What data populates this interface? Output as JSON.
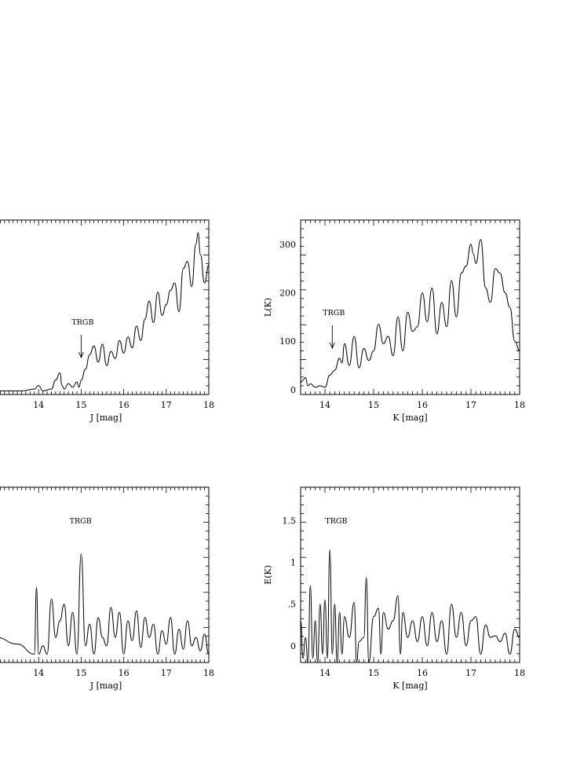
{
  "figure": {
    "charts": [
      {
        "id": "lf-j",
        "type": "line",
        "xlabel": "J [mag]",
        "ylabel": "",
        "xlim": [
          13.0,
          18.0
        ],
        "ylim": [
          0,
          1
        ],
        "x_ticks": [
          "14",
          "15",
          "16",
          "17",
          "18"
        ],
        "y_ticks": [],
        "annotation": {
          "text": "TRGB",
          "x": 15.0,
          "arrow": true
        },
        "series": [
          {
            "x": [
              13.0,
              13.6,
              13.9,
              14.0,
              14.1,
              14.3,
              14.4,
              14.5,
              14.55,
              14.6,
              14.7,
              14.8,
              14.9,
              14.95,
              15.0,
              15.1,
              15.2,
              15.3,
              15.4,
              15.5,
              15.6,
              15.7,
              15.8,
              15.9,
              16.0,
              16.1,
              16.2,
              16.3,
              16.4,
              16.5,
              16.6,
              16.7,
              16.8,
              16.9,
              17.0,
              17.1,
              17.2,
              17.3,
              17.4,
              17.5,
              17.6,
              17.7,
              17.75,
              17.8,
              17.9,
              18.0
            ],
            "y": [
              0.0,
              0.0,
              0.01,
              0.03,
              0.0,
              0.01,
              0.06,
              0.1,
              0.03,
              0.01,
              0.04,
              0.02,
              0.05,
              0.02,
              0.06,
              0.12,
              0.2,
              0.25,
              0.16,
              0.26,
              0.14,
              0.22,
              0.18,
              0.28,
              0.21,
              0.3,
              0.24,
              0.36,
              0.28,
              0.4,
              0.5,
              0.38,
              0.55,
              0.42,
              0.48,
              0.56,
              0.6,
              0.44,
              0.68,
              0.72,
              0.58,
              0.82,
              0.88,
              0.76,
              0.6,
              0.7
            ]
          }
        ]
      },
      {
        "id": "lf-k",
        "type": "line",
        "xlabel": "K [mag]",
        "ylabel": "L(K)",
        "xlim": [
          13.5,
          18.0
        ],
        "ylim": [
          -10,
          350
        ],
        "x_ticks": [
          "14",
          "15",
          "16",
          "17",
          "18"
        ],
        "y_ticks": [
          "0",
          "100",
          "200",
          "300"
        ],
        "annotation": {
          "text": "TRGB",
          "x": 14.15,
          "arrow": true
        },
        "series": [
          {
            "x": [
              13.5,
              13.55,
              13.6,
              13.65,
              13.7,
              13.8,
              13.9,
              14.0,
              14.1,
              14.2,
              14.3,
              14.35,
              14.4,
              14.5,
              14.6,
              14.7,
              14.8,
              14.9,
              15.0,
              15.1,
              15.2,
              15.3,
              15.4,
              15.5,
              15.6,
              15.7,
              15.8,
              15.9,
              16.0,
              16.1,
              16.2,
              16.3,
              16.4,
              16.5,
              16.6,
              16.7,
              16.8,
              16.9,
              17.0,
              17.05,
              17.1,
              17.2,
              17.3,
              17.4,
              17.5,
              17.6,
              17.7,
              17.8,
              17.9,
              18.0
            ],
            "y": [
              15,
              20,
              25,
              8,
              12,
              5,
              8,
              5,
              30,
              40,
              65,
              55,
              95,
              50,
              110,
              45,
              85,
              60,
              80,
              135,
              95,
              110,
              70,
              150,
              80,
              160,
              120,
              130,
              200,
              140,
              210,
              115,
              180,
              130,
              225,
              150,
              240,
              255,
              300,
              280,
              260,
              310,
              210,
              180,
              250,
              240,
              200,
              170,
              100,
              80
            ]
          }
        ]
      },
      {
        "id": "ef-j",
        "type": "line",
        "xlabel": "J [mag]",
        "ylabel": "",
        "xlim": [
          13.0,
          18.0
        ],
        "ylim": [
          0,
          1
        ],
        "x_ticks": [
          "14",
          "15",
          "16",
          "17",
          "18"
        ],
        "y_ticks": [],
        "annotation": {
          "text": "TRGB",
          "x": 14.95,
          "arrow": false
        },
        "series": [
          {
            "x": [
              13.0,
              13.5,
              13.9,
              13.95,
              14.0,
              14.1,
              14.2,
              14.3,
              14.4,
              14.5,
              14.6,
              14.7,
              14.8,
              14.9,
              15.0,
              15.1,
              15.2,
              15.3,
              15.4,
              15.5,
              15.6,
              15.7,
              15.8,
              15.9,
              16.0,
              16.1,
              16.2,
              16.3,
              16.4,
              16.5,
              16.6,
              16.7,
              16.8,
              16.9,
              17.0,
              17.1,
              17.2,
              17.3,
              17.4,
              17.5,
              17.6,
              17.7,
              17.8,
              17.9,
              18.0
            ],
            "y": [
              0.1,
              0.06,
              0.0,
              0.4,
              0.0,
              0.05,
              0.0,
              0.33,
              0.1,
              0.2,
              0.3,
              0.05,
              0.25,
              0.0,
              0.6,
              0.05,
              0.18,
              0.0,
              0.22,
              0.1,
              0.05,
              0.28,
              0.1,
              0.25,
              0.0,
              0.2,
              0.08,
              0.26,
              0.04,
              0.22,
              0.1,
              0.18,
              0.0,
              0.14,
              0.06,
              0.22,
              0.0,
              0.15,
              0.03,
              0.2,
              0.05,
              0.1,
              0.02,
              0.12,
              0.0
            ]
          }
        ]
      },
      {
        "id": "ef-k",
        "type": "line",
        "xlabel": "K [mag]",
        "ylabel": "E(K)",
        "xlim": [
          13.5,
          18.0
        ],
        "ylim": [
          -0.2,
          1.9
        ],
        "x_ticks": [
          "14",
          "15",
          "16",
          "17",
          "18"
        ],
        "y_ticks": [
          "0",
          ".5",
          "1",
          "1.5"
        ],
        "annotation": {
          "text": "TRGB",
          "x": 14.2,
          "arrow": false
        },
        "series": [
          {
            "x": [
              13.5,
              13.55,
              13.6,
              13.65,
              13.7,
              13.75,
              13.8,
              13.85,
              13.9,
              13.95,
              14.0,
              14.05,
              14.1,
              14.15,
              14.2,
              14.25,
              14.3,
              14.35,
              14.4,
              14.5,
              14.6,
              14.65,
              14.7,
              14.8,
              14.85,
              14.9,
              15.0,
              15.1,
              15.15,
              15.2,
              15.3,
              15.4,
              15.5,
              15.55,
              15.6,
              15.7,
              15.8,
              15.9,
              16.0,
              16.1,
              16.2,
              16.3,
              16.4,
              16.5,
              16.6,
              16.7,
              16.8,
              16.9,
              17.0,
              17.1,
              17.2,
              17.3,
              17.4,
              17.5,
              17.6,
              17.7,
              17.8,
              17.9,
              18.0
            ],
            "y": [
              0.3,
              -0.15,
              0.1,
              -0.2,
              0.72,
              -0.15,
              0.3,
              -0.2,
              0.5,
              -0.1,
              0.55,
              -0.15,
              1.15,
              -0.1,
              0.5,
              -0.2,
              0.4,
              -0.1,
              0.35,
              0.1,
              0.52,
              -0.2,
              0.05,
              0.1,
              0.82,
              -0.2,
              0.35,
              0.45,
              -0.1,
              0.4,
              0.2,
              0.3,
              0.6,
              -0.1,
              0.4,
              0.1,
              0.3,
              0.05,
              0.35,
              0.0,
              0.4,
              0.05,
              0.3,
              -0.1,
              0.5,
              0.1,
              0.4,
              0.0,
              0.3,
              0.35,
              -0.1,
              0.25,
              0.1,
              0.12,
              0.05,
              0.15,
              -0.1,
              0.2,
              0.1
            ]
          }
        ]
      }
    ]
  },
  "chart_data": [
    {
      "type": "line",
      "title": "",
      "xlabel": "J [mag]",
      "ylabel": "",
      "xlim": [
        13.0,
        18.0
      ],
      "annotation": "TRGB",
      "series": [
        {
          "x": [
            13.0,
            13.6,
            13.9,
            14.0,
            14.1,
            14.3,
            14.4,
            14.5,
            14.55,
            14.6,
            14.7,
            14.8,
            14.9,
            14.95,
            15.0,
            15.1,
            15.2,
            15.3,
            15.4,
            15.5,
            15.6,
            15.7,
            15.8,
            15.9,
            16.0,
            16.1,
            16.2,
            16.3,
            16.4,
            16.5,
            16.6,
            16.7,
            16.8,
            16.9,
            17.0,
            17.1,
            17.2,
            17.3,
            17.4,
            17.5,
            17.6,
            17.7,
            17.75,
            17.8,
            17.9,
            18.0
          ],
          "y": [
            0.0,
            0.0,
            0.01,
            0.03,
            0.0,
            0.01,
            0.06,
            0.1,
            0.03,
            0.01,
            0.04,
            0.02,
            0.05,
            0.02,
            0.06,
            0.12,
            0.2,
            0.25,
            0.16,
            0.26,
            0.14,
            0.22,
            0.18,
            0.28,
            0.21,
            0.3,
            0.24,
            0.36,
            0.28,
            0.4,
            0.5,
            0.38,
            0.55,
            0.42,
            0.48,
            0.56,
            0.6,
            0.44,
            0.68,
            0.72,
            0.58,
            0.82,
            0.88,
            0.76,
            0.6,
            0.7
          ]
        }
      ]
    },
    {
      "type": "line",
      "title": "",
      "xlabel": "K [mag]",
      "ylabel": "L(K)",
      "xlim": [
        13.5,
        18.0
      ],
      "ylim": [
        -10,
        350
      ],
      "annotation": "TRGB",
      "series": [
        {
          "x": [
            13.5,
            13.55,
            13.6,
            13.65,
            13.7,
            13.8,
            13.9,
            14.0,
            14.1,
            14.2,
            14.3,
            14.35,
            14.4,
            14.5,
            14.6,
            14.7,
            14.8,
            14.9,
            15.0,
            15.1,
            15.2,
            15.3,
            15.4,
            15.5,
            15.6,
            15.7,
            15.8,
            15.9,
            16.0,
            16.1,
            16.2,
            16.3,
            16.4,
            16.5,
            16.6,
            16.7,
            16.8,
            16.9,
            17.0,
            17.05,
            17.1,
            17.2,
            17.3,
            17.4,
            17.5,
            17.6,
            17.7,
            17.8,
            17.9,
            18.0
          ],
          "y": [
            15,
            20,
            25,
            8,
            12,
            5,
            8,
            5,
            30,
            40,
            65,
            55,
            95,
            50,
            110,
            45,
            85,
            60,
            80,
            135,
            95,
            110,
            70,
            150,
            80,
            160,
            120,
            130,
            200,
            140,
            210,
            115,
            180,
            130,
            225,
            150,
            240,
            255,
            300,
            280,
            260,
            310,
            210,
            180,
            250,
            240,
            200,
            170,
            100,
            80
          ]
        }
      ]
    },
    {
      "type": "line",
      "title": "",
      "xlabel": "J [mag]",
      "ylabel": "",
      "xlim": [
        13.0,
        18.0
      ],
      "annotation": "TRGB",
      "series": [
        {
          "x": [
            13.0,
            13.5,
            13.9,
            13.95,
            14.0,
            14.1,
            14.2,
            14.3,
            14.4,
            14.5,
            14.6,
            14.7,
            14.8,
            14.9,
            15.0,
            15.1,
            15.2,
            15.3,
            15.4,
            15.5,
            15.6,
            15.7,
            15.8,
            15.9,
            16.0,
            16.1,
            16.2,
            16.3,
            16.4,
            16.5,
            16.6,
            16.7,
            16.8,
            16.9,
            17.0,
            17.1,
            17.2,
            17.3,
            17.4,
            17.5,
            17.6,
            17.7,
            17.8,
            17.9,
            18.0
          ],
          "y": [
            0.1,
            0.06,
            0.0,
            0.4,
            0.0,
            0.05,
            0.0,
            0.33,
            0.1,
            0.2,
            0.3,
            0.05,
            0.25,
            0.0,
            0.6,
            0.05,
            0.18,
            0.0,
            0.22,
            0.1,
            0.05,
            0.28,
            0.1,
            0.25,
            0.0,
            0.2,
            0.08,
            0.26,
            0.04,
            0.22,
            0.1,
            0.18,
            0.0,
            0.14,
            0.06,
            0.22,
            0.0,
            0.15,
            0.03,
            0.2,
            0.05,
            0.1,
            0.02,
            0.12,
            0.0
          ]
        }
      ]
    },
    {
      "type": "line",
      "title": "",
      "xlabel": "K [mag]",
      "ylabel": "E(K)",
      "xlim": [
        13.5,
        18.0
      ],
      "ylim": [
        -0.2,
        1.9
      ],
      "annotation": "TRGB",
      "series": [
        {
          "x": [
            13.5,
            13.55,
            13.6,
            13.65,
            13.7,
            13.75,
            13.8,
            13.85,
            13.9,
            13.95,
            14.0,
            14.05,
            14.1,
            14.15,
            14.2,
            14.25,
            14.3,
            14.35,
            14.4,
            14.5,
            14.6,
            14.65,
            14.7,
            14.8,
            14.85,
            14.9,
            15.0,
            15.1,
            15.15,
            15.2,
            15.3,
            15.4,
            15.5,
            15.55,
            15.6,
            15.7,
            15.8,
            15.9,
            16.0,
            16.1,
            16.2,
            16.3,
            16.4,
            16.5,
            16.6,
            16.7,
            16.8,
            16.9,
            17.0,
            17.1,
            17.2,
            17.3,
            17.4,
            17.5,
            17.6,
            17.7,
            17.8,
            17.9,
            18.0
          ],
          "y": [
            0.3,
            -0.15,
            0.1,
            -0.2,
            0.72,
            -0.15,
            0.3,
            -0.2,
            0.5,
            -0.1,
            0.55,
            -0.15,
            1.15,
            -0.1,
            0.5,
            -0.2,
            0.4,
            -0.1,
            0.35,
            0.1,
            0.52,
            -0.2,
            0.05,
            0.1,
            0.82,
            -0.2,
            0.35,
            0.45,
            -0.1,
            0.4,
            0.2,
            0.3,
            0.6,
            -0.1,
            0.4,
            0.1,
            0.3,
            0.05,
            0.35,
            0.0,
            0.4,
            0.05,
            0.3,
            -0.1,
            0.5,
            0.1,
            0.4,
            0.0,
            0.3,
            0.35,
            -0.1,
            0.25,
            0.1,
            0.12,
            0.05,
            0.15,
            -0.1,
            0.2,
            0.1
          ]
        }
      ]
    }
  ]
}
